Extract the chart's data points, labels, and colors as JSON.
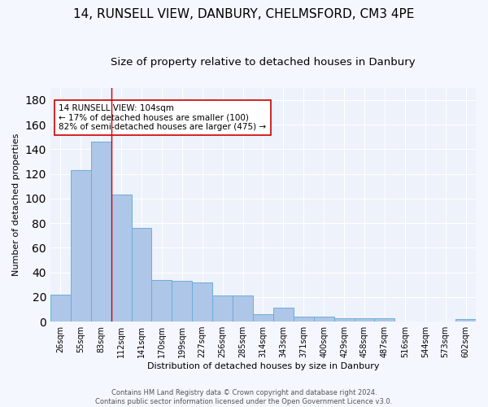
{
  "title1": "14, RUNSELL VIEW, DANBURY, CHELMSFORD, CM3 4PE",
  "title2": "Size of property relative to detached houses in Danbury",
  "xlabel": "Distribution of detached houses by size in Danbury",
  "ylabel": "Number of detached properties",
  "categories": [
    "26sqm",
    "55sqm",
    "83sqm",
    "112sqm",
    "141sqm",
    "170sqm",
    "199sqm",
    "227sqm",
    "256sqm",
    "285sqm",
    "314sqm",
    "343sqm",
    "371sqm",
    "400sqm",
    "429sqm",
    "458sqm",
    "487sqm",
    "516sqm",
    "544sqm",
    "573sqm",
    "602sqm"
  ],
  "values": [
    22,
    123,
    146,
    103,
    76,
    34,
    33,
    32,
    21,
    21,
    6,
    11,
    4,
    4,
    3,
    3,
    3,
    0,
    0,
    0,
    2
  ],
  "bar_color": "#aec6e8",
  "bar_edge_color": "#6baed6",
  "background_color": "#eef2fb",
  "grid_color": "#ffffff",
  "red_line_index": 2.5,
  "annotation_text": "14 RUNSELL VIEW: 104sqm\n← 17% of detached houses are smaller (100)\n82% of semi-detached houses are larger (475) →",
  "annotation_box_color": "#ffffff",
  "annotation_box_edge": "#cc0000",
  "ylim": [
    0,
    190
  ],
  "yticks": [
    0,
    20,
    40,
    60,
    80,
    100,
    120,
    140,
    160,
    180
  ],
  "footer": "Contains HM Land Registry data © Crown copyright and database right 2024.\nContains public sector information licensed under the Open Government Licence v3.0.",
  "title1_fontsize": 11,
  "title2_fontsize": 9.5,
  "xlabel_fontsize": 8,
  "ylabel_fontsize": 8,
  "tick_fontsize": 7,
  "annotation_fontsize": 7.5,
  "footer_fontsize": 6
}
